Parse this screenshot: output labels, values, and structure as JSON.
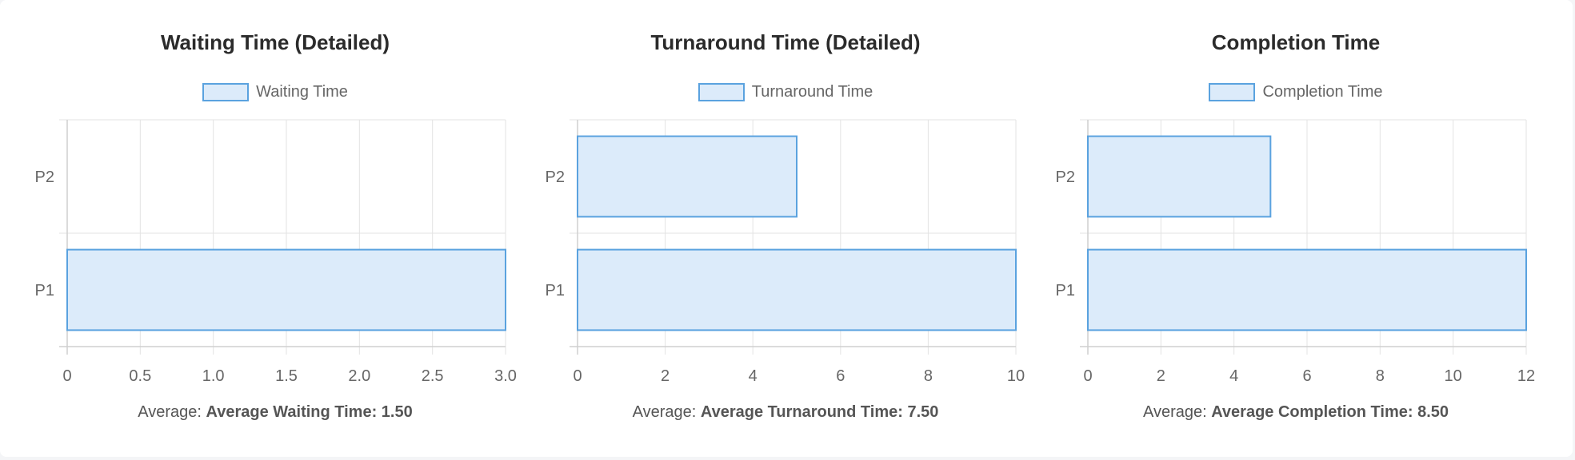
{
  "chart_data": [
    {
      "type": "bar",
      "orientation": "horizontal",
      "title": "Waiting Time (Detailed)",
      "categories": [
        "P2",
        "P1"
      ],
      "series": [
        {
          "name": "Waiting Time",
          "values": [
            0,
            3.0
          ]
        }
      ],
      "xlim": [
        0,
        3.0
      ],
      "x_ticks": [
        "0",
        "0.5",
        "1.0",
        "1.5",
        "2.0",
        "2.5",
        "3.0"
      ],
      "average_prefix": "Average:",
      "average_text": "Average Waiting Time: 1.50",
      "grid": true,
      "legend": "top",
      "bar_fill": "#dcebfa",
      "bar_stroke": "#5aa2df"
    },
    {
      "type": "bar",
      "orientation": "horizontal",
      "title": "Turnaround Time (Detailed)",
      "categories": [
        "P2",
        "P1"
      ],
      "series": [
        {
          "name": "Turnaround Time",
          "values": [
            5,
            10
          ]
        }
      ],
      "xlim": [
        0,
        10
      ],
      "x_ticks": [
        "0",
        "2",
        "4",
        "6",
        "8",
        "10"
      ],
      "average_prefix": "Average:",
      "average_text": "Average Turnaround Time: 7.50",
      "grid": true,
      "legend": "top",
      "bar_fill": "#dcebfa",
      "bar_stroke": "#5aa2df"
    },
    {
      "type": "bar",
      "orientation": "horizontal",
      "title": "Completion Time",
      "categories": [
        "P2",
        "P1"
      ],
      "series": [
        {
          "name": "Completion Time",
          "values": [
            5,
            12
          ]
        }
      ],
      "xlim": [
        0,
        12
      ],
      "x_ticks": [
        "0",
        "2",
        "4",
        "6",
        "8",
        "10",
        "12"
      ],
      "average_prefix": "Average:",
      "average_text": "Average Completion Time: 8.50",
      "grid": true,
      "legend": "top",
      "bar_fill": "#dcebfa",
      "bar_stroke": "#5aa2df"
    }
  ]
}
